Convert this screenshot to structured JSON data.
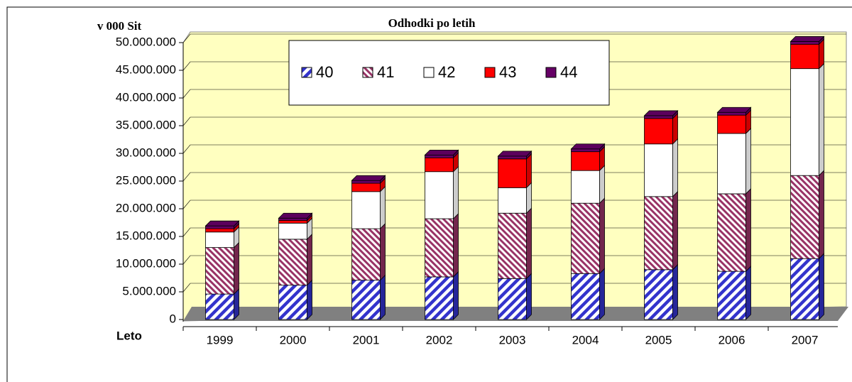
{
  "chart_data": {
    "type": "stacked_bar_3d",
    "title": "Odhodki po letih",
    "y_label": "v 000 Sit",
    "x_label": "Leto",
    "categories": [
      "1999",
      "2000",
      "2001",
      "2002",
      "2003",
      "2004",
      "2005",
      "2006",
      "2007"
    ],
    "series": [
      {
        "name": "40",
        "color": "#3333cc",
        "pattern": "hatch",
        "values": [
          4600000,
          6200000,
          7100000,
          7700000,
          7400000,
          8300000,
          9000000,
          8700000,
          11000000
        ]
      },
      {
        "name": "41",
        "color": "#993366",
        "pattern": "hatch",
        "values": [
          8400000,
          8300000,
          9300000,
          10500000,
          11800000,
          12700000,
          13200000,
          14000000,
          15000000
        ]
      },
      {
        "name": "42",
        "color": "#ffffff",
        "values": [
          2800000,
          2900000,
          6700000,
          8500000,
          4600000,
          5900000,
          9500000,
          10900000,
          19300000
        ]
      },
      {
        "name": "43",
        "color": "#ff0000",
        "values": [
          600000,
          500000,
          1500000,
          2500000,
          5200000,
          3400000,
          4600000,
          3300000,
          4400000
        ]
      },
      {
        "name": "44",
        "color": "#660066",
        "values": [
          500000,
          400000,
          500000,
          500000,
          500000,
          500000,
          500000,
          500000,
          500000
        ]
      }
    ],
    "ylim": [
      0,
      50000000
    ],
    "yticks": [
      0,
      {
        "value": 5000000,
        "label": "5.000.000"
      },
      {
        "value": 10000000,
        "label": "10.000.000"
      },
      {
        "value": 15000000,
        "label": "15.000.000"
      },
      {
        "value": 20000000,
        "label": "20.000.000"
      },
      {
        "value": 25000000,
        "label": "25.000.000"
      },
      {
        "value": 30000000,
        "label": "30.000.000"
      },
      {
        "value": 35000000,
        "label": "35.000.000"
      },
      {
        "value": 40000000,
        "label": "40.000.000"
      },
      {
        "value": 45000000,
        "label": "45.000.000"
      },
      {
        "value": 50000000,
        "label": "50.000.000"
      }
    ],
    "grid": true,
    "legend": "top"
  }
}
